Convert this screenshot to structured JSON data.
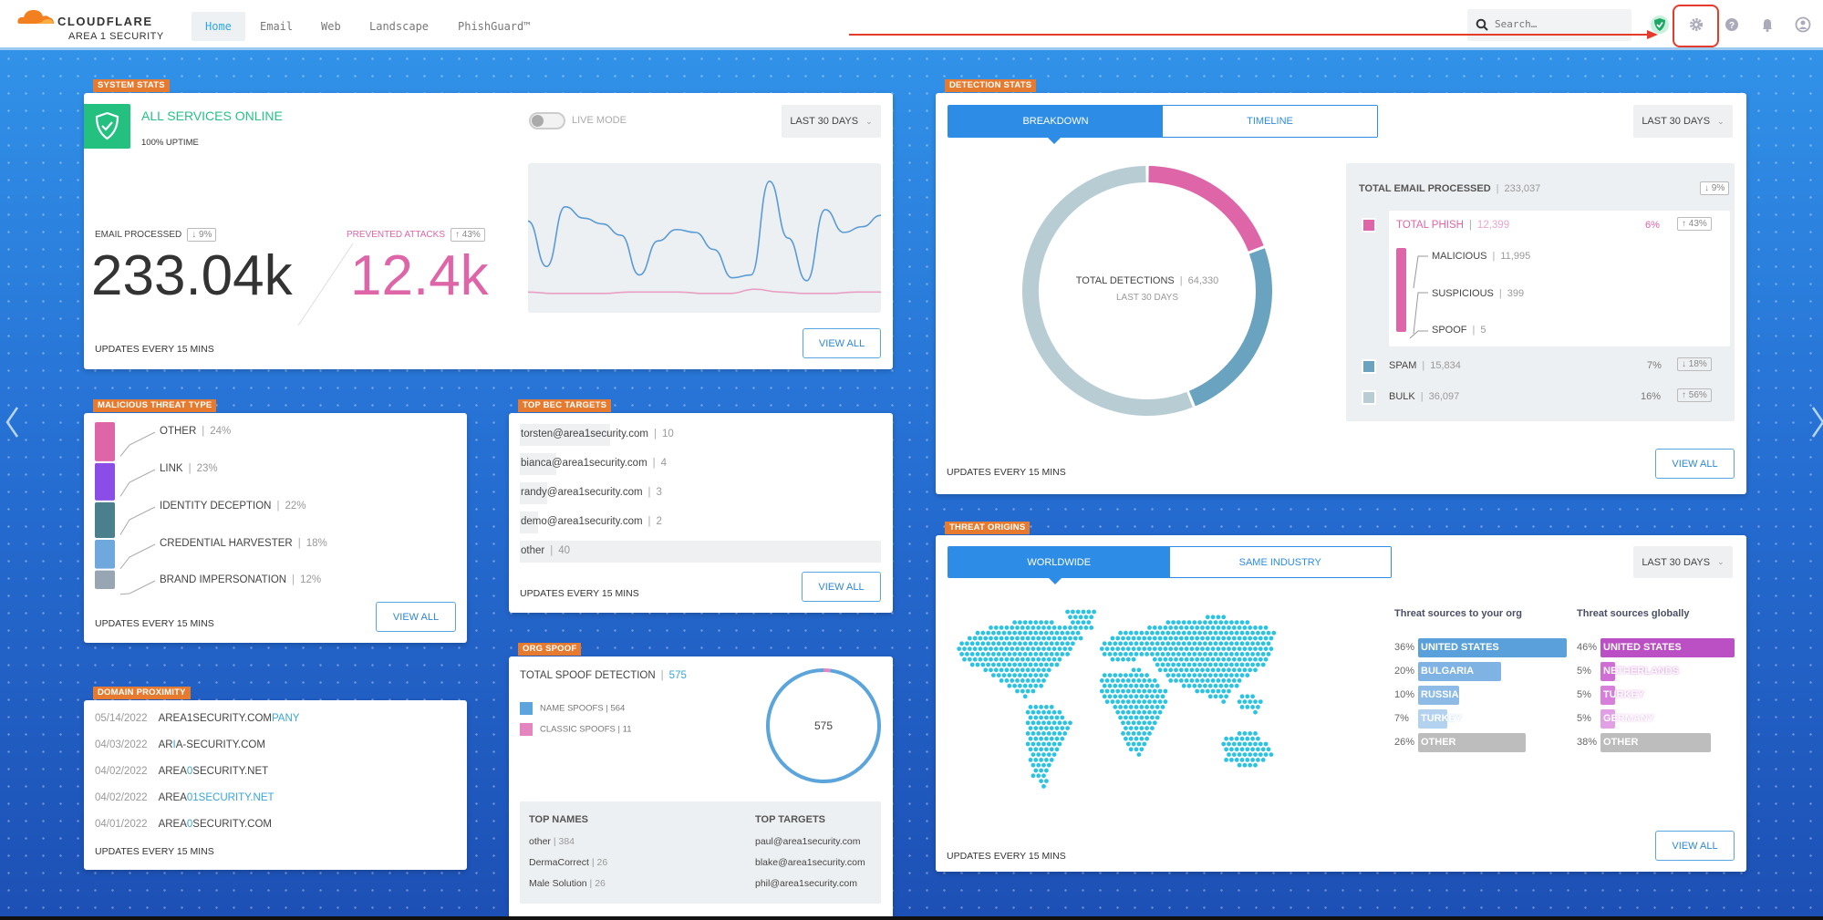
{
  "header": {
    "brand": "CLOUDFLARE",
    "product": "AREA 1 SECURITY",
    "tabs": [
      {
        "label": "Home",
        "active": true
      },
      {
        "label": "Email"
      },
      {
        "label": "Web"
      },
      {
        "label": "Landscape"
      },
      {
        "label": "PhishGuard™"
      }
    ],
    "search_placeholder": "Search…",
    "icons": [
      "shield-check-icon",
      "gear-icon",
      "help-icon",
      "bell-icon",
      "user-icon"
    ]
  },
  "common": {
    "updates": "UPDATES EVERY 15 MINS",
    "view_all": "VIEW ALL",
    "range": "LAST 30 DAYS"
  },
  "system_stats": {
    "tag": "SYSTEM STATS",
    "status": "ALL SERVICES ONLINE",
    "uptime": "100% UPTIME",
    "live_mode": "LIVE MODE",
    "live_mode_on": false,
    "email_label": "EMAIL PROCESSED",
    "email_change": "↓ 9%",
    "email_value": "233.04k",
    "attacks_label": "PREVENTED ATTACKS",
    "attacks_change": "↑ 43%",
    "attacks_value": "12.4k",
    "sparkline": {
      "email": [
        62,
        30,
        72,
        64,
        60,
        52,
        24,
        48,
        56,
        54,
        42,
        22,
        24,
        90,
        50,
        20,
        70,
        54,
        58,
        66
      ],
      "attacks": [
        12,
        11,
        11,
        11,
        12,
        12,
        12,
        11,
        11,
        14,
        12,
        11,
        11,
        12,
        12
      ]
    }
  },
  "malicious": {
    "tag": "MALICIOUS THREAT TYPE",
    "items": [
      {
        "label": "OTHER",
        "pct": "24%",
        "value": 24,
        "color": "#de65a8"
      },
      {
        "label": "LINK",
        "pct": "23%",
        "value": 23,
        "color": "#8a4de6"
      },
      {
        "label": "IDENTITY DECEPTION",
        "pct": "22%",
        "value": 22,
        "color": "#4a7f8c"
      },
      {
        "label": "CREDENTIAL HARVESTER",
        "pct": "18%",
        "value": 18,
        "color": "#6fa8dc"
      },
      {
        "label": "BRAND IMPERSONATION",
        "pct": "12%",
        "value": 12,
        "color": "#98a6b3"
      }
    ]
  },
  "bec": {
    "tag": "TOP BEC TARGETS",
    "items": [
      {
        "email": "torsten@area1security.com",
        "count": "10",
        "value": 10
      },
      {
        "email": "bianca@area1security.com",
        "count": "4",
        "value": 4
      },
      {
        "email": "randy@area1security.com",
        "count": "3",
        "value": 3
      },
      {
        "email": "demo@area1security.com",
        "count": "2",
        "value": 2
      },
      {
        "email": "other",
        "count": "40",
        "value": 40
      }
    ]
  },
  "domain": {
    "tag": "DOMAIN PROXIMITY",
    "items": [
      {
        "date": "05/14/2022",
        "a": "AREA1SECURITY.COM",
        "b": "PANY",
        "c": ""
      },
      {
        "date": "04/03/2022",
        "a": "AR",
        "b": "I",
        "c": "A-SECURITY.COM"
      },
      {
        "date": "04/02/2022",
        "a": "AREA",
        "b": "0",
        "c": "SECURITY.NET"
      },
      {
        "date": "04/02/2022",
        "a": "AREA",
        "b": "01SECURITY.NET",
        "c": ""
      },
      {
        "date": "04/01/2022",
        "a": "AREA",
        "b": "0",
        "c": "SECURITY.COM"
      }
    ]
  },
  "spoof": {
    "tag": "ORG SPOOF",
    "title": "TOTAL SPOOF DETECTION",
    "total": "575",
    "legend": [
      {
        "label": "NAME SPOOFS",
        "count": "564",
        "value": 564,
        "color": "#5ba4dc"
      },
      {
        "label": "CLASSIC SPOOFS",
        "count": "11",
        "value": 11,
        "color": "#e585c0"
      }
    ],
    "top_names_label": "TOP NAMES",
    "top_targets_label": "TOP TARGETS",
    "top_names": [
      {
        "name": "other",
        "count": "384"
      },
      {
        "name": "DermaCorrect",
        "count": "26"
      },
      {
        "name": "Male Solution",
        "count": "26"
      }
    ],
    "top_targets": [
      "paul@area1security.com",
      "blake@area1security.com",
      "phil@area1security.com"
    ]
  },
  "detection": {
    "tag": "DETECTION STATS",
    "tabs": [
      "BREAKDOWN",
      "TIMELINE"
    ],
    "center_label": "TOTAL DETECTIONS",
    "center_value": "64,330",
    "center_sub": "LAST 30 DAYS",
    "total_label": "TOTAL EMAIL PROCESSED",
    "total_value": "233,037",
    "total_change": "↓ 9%",
    "phish": {
      "label": "TOTAL PHISH",
      "value": "12,399",
      "pct": "6%",
      "change": "↑ 43%",
      "color": "#de65a8",
      "n": 12399
    },
    "sub": [
      {
        "label": "MALICIOUS",
        "value": "11,995"
      },
      {
        "label": "SUSPICIOUS",
        "value": "399"
      },
      {
        "label": "SPOOF",
        "value": "5"
      }
    ],
    "spam": {
      "label": "SPAM",
      "value": "15,834",
      "pct": "7%",
      "change": "↓ 18%",
      "color": "#6aa3c0",
      "n": 15834
    },
    "bulk": {
      "label": "BULK",
      "value": "36,097",
      "pct": "16%",
      "change": "↑ 56%",
      "color": "#b7cdd3",
      "n": 36097
    }
  },
  "origins": {
    "tag": "THREAT ORIGINS",
    "tabs": [
      "WORLDWIDE",
      "SAME INDUSTRY"
    ],
    "org_title": "Threat sources to your org",
    "global_title": "Threat sources globally",
    "org": [
      {
        "pct": "36%",
        "label": "UNITED STATES",
        "v": 36,
        "color": "#5aa0da"
      },
      {
        "pct": "20%",
        "label": "BULGARIA",
        "v": 20,
        "color": "#7fb3e4"
      },
      {
        "pct": "10%",
        "label": "RUSSIA",
        "v": 10,
        "color": "#8dbbe6"
      },
      {
        "pct": "7%",
        "label": "TURKEY",
        "v": 7,
        "color": "#b3d2ef"
      },
      {
        "pct": "26%",
        "label": "OTHER",
        "v": 26,
        "color": "#bdbdbd"
      }
    ],
    "global": [
      {
        "pct": "46%",
        "label": "UNITED STATES",
        "v": 46,
        "color": "#bb4fc4"
      },
      {
        "pct": "5%",
        "label": "NETHERLANDS",
        "v": 5,
        "color": "#cf6fd4"
      },
      {
        "pct": "5%",
        "label": "TURKEY",
        "v": 5,
        "color": "#d77fdb"
      },
      {
        "pct": "5%",
        "label": "GERMANY",
        "v": 5,
        "color": "#e1a0e4"
      },
      {
        "pct": "38%",
        "label": "OTHER",
        "v": 38,
        "color": "#bdbdbd"
      }
    ]
  }
}
